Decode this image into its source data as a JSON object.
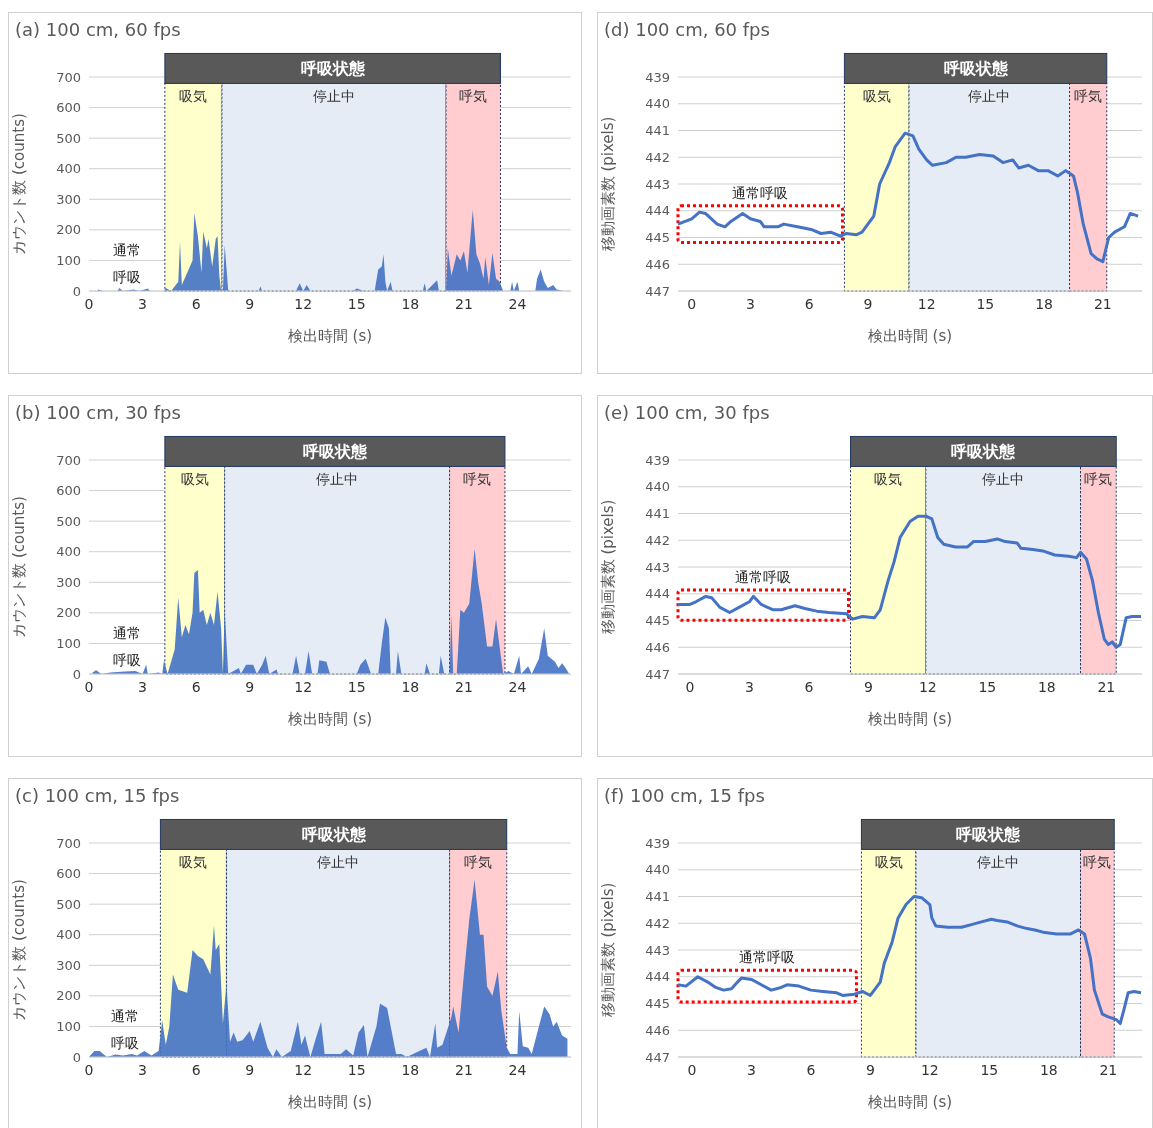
{
  "chart_data": [
    {
      "type": "area",
      "title": "(a) 100 cm, 60 fps",
      "xlabel": "検出時間 (s)",
      "ylabel": "カウント数 (counts)",
      "xlim": [
        0,
        27
      ],
      "xticks": [
        0,
        3,
        6,
        9,
        12,
        15,
        18,
        21,
        24
      ],
      "ylim": [
        0,
        700
      ],
      "yticks": [
        0,
        100,
        200,
        300,
        400,
        500,
        600,
        700
      ],
      "grid": "y",
      "x": [
        0.5,
        0.8,
        1.6,
        1.7,
        1.9,
        2.5,
        2.8,
        3.3,
        3.4,
        4.2,
        4.3,
        4.6,
        5.0,
        5.1,
        5.2,
        5.5,
        5.8,
        5.9,
        6.1,
        6.3,
        6.4,
        6.6,
        6.7,
        6.9,
        7.1,
        7.2,
        7.3,
        7.4,
        7.5,
        7.6,
        7.8,
        9.5,
        9.6,
        9.7,
        11.6,
        11.8,
        12.0,
        12.2,
        12.4,
        14.8,
        15.0,
        15.4,
        16.0,
        16.2,
        16.4,
        16.5,
        16.6,
        16.7,
        16.9,
        17.0,
        18.7,
        18.8,
        18.9,
        19.5,
        19.6,
        20.0,
        20.1,
        20.3,
        20.6,
        20.8,
        21.0,
        21.2,
        21.4,
        21.5,
        21.7,
        21.9,
        22.1,
        22.2,
        22.4,
        22.6,
        22.8,
        23.0,
        23.2,
        23.6,
        23.7,
        23.8,
        24.0,
        24.1,
        25.0,
        25.1,
        25.3,
        25.5,
        25.7,
        26.0,
        26.2,
        26.6
      ],
      "series": [
        {
          "color": "#4472c4",
          "values": [
            5,
            0,
            0,
            10,
            0,
            5,
            0,
            8,
            0,
            0,
            10,
            0,
            30,
            160,
            20,
            60,
            100,
            255,
            180,
            60,
            195,
            140,
            170,
            80,
            170,
            180,
            50,
            0,
            0,
            150,
            0,
            0,
            15,
            0,
            0,
            25,
            0,
            20,
            0,
            0,
            8,
            0,
            0,
            70,
            80,
            120,
            30,
            0,
            30,
            0,
            0,
            25,
            0,
            35,
            0,
            0,
            140,
            50,
            120,
            100,
            130,
            60,
            200,
            265,
            120,
            90,
            40,
            110,
            20,
            125,
            40,
            30,
            0,
            0,
            30,
            0,
            30,
            0,
            0,
            40,
            70,
            30,
            10,
            20,
            5,
            0
          ]
        }
      ],
      "bands": [
        {
          "axis": "x",
          "from": 4.25,
          "to": 7.45,
          "label": "吸気",
          "color": "#ffffcc"
        },
        {
          "axis": "x",
          "from": 7.45,
          "to": 20.0,
          "label": "停止中",
          "color": "#e6ecf6"
        },
        {
          "axis": "x",
          "from": 20.0,
          "to": 23.05,
          "label": "呼気",
          "color": "#ffccd0"
        }
      ],
      "annotations": [
        "呼吸状態",
        "通常",
        "呼吸"
      ]
    },
    {
      "type": "line",
      "title": "(d) 100 cm, 60 fps",
      "xlabel": "検出時間 (s)",
      "ylabel": "移動画素数 (pixels)",
      "xlim": [
        -0.7,
        23
      ],
      "xticks": [
        0,
        3,
        6,
        9,
        12,
        15,
        18,
        21
      ],
      "ylim": [
        447,
        439
      ],
      "yticks": [
        439,
        440,
        441,
        442,
        443,
        444,
        445,
        446,
        447
      ],
      "grid": "y",
      "x": [
        -0.7,
        0,
        0.4,
        0.7,
        1.3,
        1.7,
        2.0,
        2.6,
        3.0,
        3.5,
        3.7,
        4.4,
        4.7,
        5.4,
        6.1,
        6.6,
        7.1,
        7.6,
        7.9,
        8.4,
        8.7,
        9.3,
        9.6,
        10.1,
        10.4,
        10.9,
        11.3,
        11.6,
        12.0,
        12.3,
        13.0,
        13.5,
        14.0,
        14.7,
        15.4,
        15.9,
        16.4,
        16.7,
        17.2,
        17.7,
        18.2,
        18.7,
        19.1,
        19.5,
        19.7,
        20.0,
        20.4,
        20.7,
        21.0,
        21.3,
        21.6,
        22.1,
        22.4,
        22.8
      ],
      "series": [
        {
          "color": "#4472c4",
          "values": [
            444.5,
            444.3,
            444.05,
            444.1,
            444.5,
            444.6,
            444.4,
            444.1,
            444.3,
            444.4,
            444.6,
            444.6,
            444.5,
            444.6,
            444.7,
            444.85,
            444.8,
            444.95,
            444.85,
            444.9,
            444.8,
            444.2,
            443.0,
            442.2,
            441.6,
            441.1,
            441.2,
            441.7,
            442.1,
            442.3,
            442.2,
            442.0,
            442.0,
            441.9,
            441.95,
            442.2,
            442.1,
            442.4,
            442.3,
            442.5,
            442.5,
            442.7,
            442.5,
            442.7,
            443.3,
            444.5,
            445.6,
            445.8,
            445.9,
            445.0,
            444.8,
            444.6,
            444.1,
            444.2
          ]
        }
      ],
      "bands": [
        {
          "axis": "x",
          "from": 7.8,
          "to": 11.1,
          "label": "吸気",
          "color": "#ffffcc"
        },
        {
          "axis": "x",
          "from": 11.1,
          "to": 19.3,
          "label": "停止中",
          "color": "#e6ecf6"
        },
        {
          "axis": "x",
          "from": 19.3,
          "to": 21.2,
          "label": "呼気",
          "color": "#ffccd0"
        }
      ],
      "annotations": [
        "呼吸状態",
        "通常呼吸"
      ]
    },
    {
      "type": "area",
      "title": "(b) 100 cm, 30 fps",
      "xlabel": "検出時間 (s)",
      "ylabel": "カウント数 (counts)",
      "xlim": [
        0,
        27
      ],
      "xticks": [
        0,
        3,
        6,
        9,
        12,
        15,
        18,
        21,
        24
      ],
      "ylim": [
        0,
        700
      ],
      "yticks": [
        0,
        100,
        200,
        300,
        400,
        500,
        600,
        700
      ],
      "grid": "y",
      "x": [
        0.2,
        0.4,
        0.7,
        1.2,
        2.0,
        2.6,
        3.0,
        3.2,
        3.3,
        3.9,
        4.1,
        4.2,
        4.4,
        4.8,
        5.0,
        5.2,
        5.4,
        5.6,
        5.8,
        5.9,
        6.1,
        6.2,
        6.4,
        6.6,
        6.8,
        7.0,
        7.2,
        7.4,
        7.5,
        7.6,
        7.8,
        8.4,
        8.5,
        8.8,
        9.2,
        9.4,
        9.7,
        9.9,
        10.1,
        10.5,
        10.6,
        11.4,
        11.6,
        11.8,
        12.1,
        12.3,
        12.5,
        12.8,
        12.9,
        13.3,
        13.5,
        15.0,
        15.2,
        15.5,
        15.8,
        16.2,
        16.4,
        16.6,
        16.8,
        16.9,
        17.2,
        17.3,
        17.5,
        18.8,
        18.9,
        19.1,
        19.6,
        19.7,
        19.9,
        20.2,
        20.3,
        20.4,
        20.6,
        20.8,
        21.0,
        21.3,
        21.6,
        21.8,
        22.0,
        22.3,
        22.6,
        22.8,
        23.0,
        23.2,
        23.5,
        23.8,
        24.1,
        24.2,
        24.6,
        24.8,
        25.2,
        25.5,
        25.7,
        26.1,
        26.3,
        26.5,
        26.7,
        26.9
      ],
      "series": [
        {
          "color": "#4472c4",
          "values": [
            5,
            12,
            0,
            5,
            8,
            10,
            0,
            30,
            0,
            5,
            0,
            45,
            0,
            80,
            250,
            120,
            160,
            130,
            200,
            330,
            340,
            200,
            210,
            160,
            200,
            160,
            270,
            150,
            0,
            210,
            0,
            20,
            0,
            30,
            30,
            0,
            30,
            60,
            0,
            15,
            0,
            0,
            60,
            0,
            0,
            75,
            0,
            0,
            45,
            40,
            0,
            0,
            30,
            50,
            0,
            0,
            100,
            185,
            150,
            0,
            0,
            75,
            0,
            0,
            35,
            0,
            0,
            60,
            0,
            0,
            195,
            0,
            0,
            210,
            200,
            230,
            410,
            300,
            230,
            90,
            90,
            180,
            90,
            0,
            10,
            0,
            60,
            0,
            25,
            0,
            50,
            150,
            60,
            40,
            20,
            35,
            20,
            0
          ]
        }
      ],
      "bands": [
        {
          "axis": "x",
          "from": 4.25,
          "to": 7.6,
          "label": "吸気",
          "color": "#ffffcc"
        },
        {
          "axis": "x",
          "from": 7.6,
          "to": 20.2,
          "label": "停止中",
          "color": "#e6ecf6"
        },
        {
          "axis": "x",
          "from": 20.2,
          "to": 23.3,
          "label": "呼気",
          "color": "#ffccd0"
        }
      ],
      "annotations": [
        "呼吸状態",
        "通常",
        "呼吸"
      ]
    },
    {
      "type": "line",
      "title": "(e) 100 cm, 30 fps",
      "xlabel": "検出時間 (s)",
      "ylabel": "移動画素数 (pixels)",
      "xlim": [
        -0.6,
        22.8
      ],
      "xticks": [
        0,
        3,
        6,
        9,
        12,
        15,
        18,
        21
      ],
      "ylim": [
        447,
        439
      ],
      "yticks": [
        439,
        440,
        441,
        442,
        443,
        444,
        445,
        446,
        447
      ],
      "grid": "y",
      "x": [
        -0.6,
        0,
        0.3,
        0.8,
        1.1,
        1.5,
        2.0,
        2.5,
        3.0,
        3.2,
        3.6,
        4.2,
        4.6,
        5.3,
        5.8,
        6.4,
        7.0,
        7.9,
        8.2,
        8.7,
        9.3,
        9.6,
        10.0,
        10.3,
        10.6,
        11.1,
        11.5,
        11.9,
        12.2,
        12.5,
        12.8,
        13.4,
        14.0,
        14.3,
        14.9,
        15.2,
        15.5,
        15.9,
        16.5,
        16.7,
        17.3,
        17.8,
        18.4,
        19.1,
        19.5,
        19.7,
        20.0,
        20.3,
        20.6,
        20.9,
        21.1,
        21.3,
        21.5,
        21.7,
        22.0,
        22.3,
        22.75
      ],
      "series": [
        {
          "color": "#4472c4",
          "values": [
            444.4,
            444.4,
            444.3,
            444.1,
            444.15,
            444.5,
            444.7,
            444.5,
            444.3,
            444.1,
            444.4,
            444.6,
            444.6,
            444.45,
            444.55,
            444.65,
            444.7,
            444.75,
            444.95,
            444.85,
            444.9,
            444.6,
            443.5,
            442.8,
            441.9,
            441.3,
            441.1,
            441.1,
            441.2,
            441.9,
            442.15,
            442.25,
            442.25,
            442.05,
            442.05,
            442.0,
            441.95,
            442.05,
            442.1,
            442.3,
            442.35,
            442.4,
            442.55,
            442.6,
            442.65,
            442.45,
            442.7,
            443.5,
            444.7,
            445.7,
            445.9,
            445.8,
            446.0,
            445.9,
            444.9,
            444.85,
            444.85
          ]
        }
      ],
      "bands": [
        {
          "axis": "x",
          "from": 8.1,
          "to": 11.9,
          "label": "吸気",
          "color": "#ffffcc"
        },
        {
          "axis": "x",
          "from": 11.9,
          "to": 19.7,
          "label": "停止中",
          "color": "#e6ecf6"
        },
        {
          "axis": "x",
          "from": 19.7,
          "to": 21.5,
          "label": "呼気",
          "color": "#ffccd0"
        }
      ],
      "annotations": [
        "呼吸状態",
        "通常呼吸"
      ]
    },
    {
      "type": "area",
      "title": "(c) 100 cm, 15 fps",
      "xlabel": "検出時間 (s)",
      "ylabel": "カウント数 (counts)",
      "xlim": [
        0,
        27
      ],
      "xticks": [
        0,
        3,
        6,
        9,
        12,
        15,
        18,
        21,
        24
      ],
      "ylim": [
        0,
        700
      ],
      "yticks": [
        0,
        100,
        200,
        300,
        400,
        500,
        600,
        700
      ],
      "grid": "y",
      "x": [
        0.0,
        0.3,
        0.6,
        1.0,
        1.5,
        1.9,
        2.4,
        2.7,
        3.1,
        3.5,
        3.9,
        4.1,
        4.3,
        4.5,
        4.7,
        5.0,
        5.5,
        5.8,
        6.1,
        6.4,
        6.8,
        7.0,
        7.1,
        7.3,
        7.5,
        7.7,
        7.9,
        8.1,
        8.3,
        8.6,
        9.0,
        9.2,
        9.6,
        10.0,
        10.3,
        10.5,
        10.8,
        11.3,
        11.7,
        11.9,
        12.1,
        12.4,
        12.7,
        13.0,
        13.2,
        14.1,
        14.4,
        14.8,
        15.1,
        15.4,
        15.6,
        16.1,
        16.3,
        16.7,
        17.2,
        17.5,
        17.8,
        18.5,
        18.9,
        19.1,
        19.4,
        19.5,
        19.8,
        20.3,
        20.4,
        20.7,
        21.0,
        21.3,
        21.6,
        21.9,
        22.1,
        22.3,
        22.6,
        22.9,
        23.1,
        23.4,
        23.6,
        24.0,
        24.1,
        24.3,
        24.6,
        24.8,
        25.2,
        25.5,
        25.8,
        26.0,
        26.2,
        26.5,
        26.8
      ],
      "series": [
        {
          "color": "#4472c4",
          "values": [
            0,
            20,
            20,
            0,
            8,
            5,
            10,
            5,
            20,
            5,
            20,
            120,
            40,
            100,
            270,
            220,
            210,
            350,
            330,
            320,
            270,
            430,
            350,
            370,
            110,
            240,
            50,
            80,
            50,
            55,
            85,
            50,
            115,
            30,
            0,
            25,
            0,
            20,
            115,
            40,
            70,
            0,
            60,
            115,
            10,
            10,
            25,
            5,
            80,
            105,
            0,
            100,
            175,
            160,
            10,
            10,
            0,
            20,
            30,
            0,
            110,
            30,
            40,
            130,
            165,
            80,
            270,
            450,
            580,
            400,
            400,
            230,
            200,
            280,
            150,
            30,
            10,
            10,
            150,
            35,
            30,
            10,
            100,
            165,
            140,
            100,
            115,
            70,
            60
          ]
        }
      ],
      "bands": [
        {
          "axis": "x",
          "from": 4.0,
          "to": 7.7,
          "label": "吸気",
          "color": "#ffffcc"
        },
        {
          "axis": "x",
          "from": 7.7,
          "to": 20.2,
          "label": "停止中",
          "color": "#e6ecf6"
        },
        {
          "axis": "x",
          "from": 20.2,
          "to": 23.4,
          "label": "呼気",
          "color": "#ffccd0"
        }
      ],
      "annotations": [
        "呼吸状態",
        "通常",
        "呼吸"
      ]
    },
    {
      "type": "line",
      "title": "(f) 100 cm, 15 fps",
      "xlabel": "検出時間 (s)",
      "ylabel": "移動画素数 (pixels)",
      "xlim": [
        -0.7,
        22.7
      ],
      "xticks": [
        0,
        3,
        6,
        9,
        12,
        15,
        18,
        21
      ],
      "ylim": [
        447,
        439
      ],
      "yticks": [
        439,
        440,
        441,
        442,
        443,
        444,
        445,
        446,
        447
      ],
      "grid": "y",
      "x": [
        -0.7,
        -0.3,
        0.3,
        0.8,
        1.2,
        1.6,
        2.0,
        2.3,
        2.5,
        3.0,
        3.5,
        4.0,
        4.5,
        4.8,
        5.4,
        6.0,
        6.6,
        7.3,
        7.6,
        8.2,
        8.6,
        9.0,
        9.5,
        9.7,
        10.1,
        10.4,
        10.8,
        11.2,
        11.6,
        12.0,
        12.1,
        12.3,
        12.9,
        13.6,
        14.1,
        14.6,
        15.1,
        15.4,
        15.9,
        16.4,
        16.9,
        17.3,
        17.8,
        18.4,
        19.1,
        19.5,
        19.8,
        20.1,
        20.3,
        20.7,
        21.0,
        21.4,
        21.6,
        21.8,
        22.0,
        22.3,
        22.65
      ],
      "series": [
        {
          "color": "#4472c4",
          "values": [
            444.3,
            444.35,
            444.0,
            444.2,
            444.4,
            444.5,
            444.45,
            444.2,
            444.05,
            444.1,
            444.3,
            444.5,
            444.4,
            444.3,
            444.35,
            444.5,
            444.55,
            444.6,
            444.7,
            444.65,
            444.55,
            444.7,
            444.2,
            443.5,
            442.7,
            441.8,
            441.3,
            441.0,
            441.05,
            441.3,
            441.8,
            442.1,
            442.15,
            442.15,
            442.05,
            441.95,
            441.85,
            441.9,
            441.95,
            442.1,
            442.2,
            442.25,
            442.35,
            442.4,
            442.4,
            442.25,
            442.4,
            443.3,
            444.5,
            445.4,
            445.5,
            445.6,
            445.75,
            445.2,
            444.6,
            444.55,
            444.6
          ]
        }
      ],
      "bands": [
        {
          "axis": "x",
          "from": 8.55,
          "to": 11.3,
          "label": "吸気",
          "color": "#ffffcc"
        },
        {
          "axis": "x",
          "from": 11.3,
          "to": 19.6,
          "label": "停止中",
          "color": "#e6ecf6"
        },
        {
          "axis": "x",
          "from": 19.6,
          "to": 21.3,
          "label": "呼気",
          "color": "#ffccd0"
        }
      ],
      "annotations": [
        "呼吸状態",
        "通常呼吸"
      ]
    }
  ]
}
